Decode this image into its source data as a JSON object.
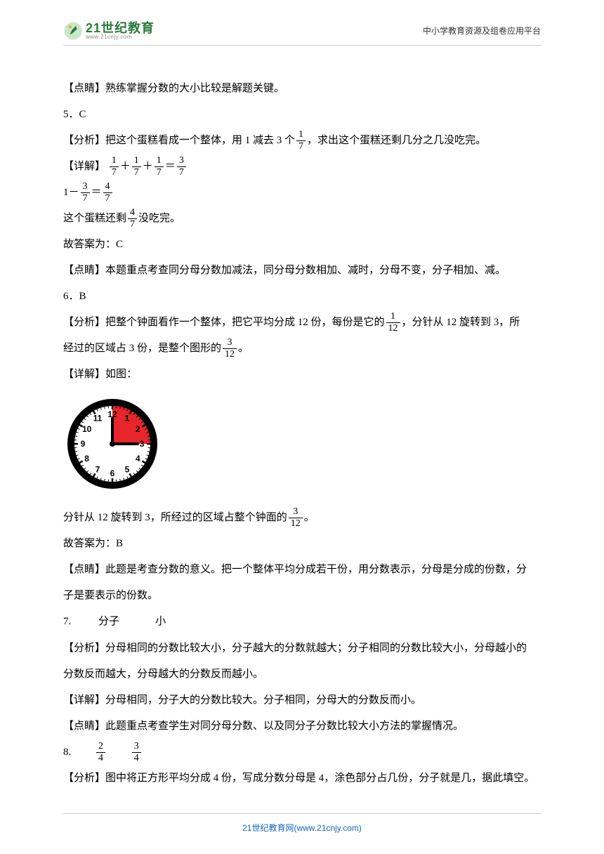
{
  "header": {
    "logo_main": "21世纪教育",
    "logo_sub": "www.21cnjy.com",
    "right_text": "中小学教育资源及组卷应用平台"
  },
  "lines": {
    "l1": "【点睛】熟练掌握分数的大小比较是解题关键。",
    "l2": "5．C",
    "l3a": "【分析】把这个蛋糕看成一个整体，用 1 减去 3 个",
    "l3b": "，求出这个蛋糕还剩几分之几没吃完。",
    "l4": "【详解】",
    "l5a": "1－",
    "l5b": "＝",
    "l6a": "这个蛋糕还剩",
    "l6b": "没吃完。",
    "l7": "故答案为：C",
    "l8": "【点睛】本题重点考查同分母分数加减法，同分母分数相加、减时，分母不变，分子相加、减。",
    "l9": "6．B",
    "l10a": "【分析】把整个钟面看作一个整体，把它平均分成 12 份，每份是它的",
    "l10b": "，分针从 12 旋转到 3，所",
    "l11a": "经过的区域占 3 份，是整个图形的",
    "l11b": "。",
    "l12": "【详解】如图：",
    "l13a": "分针从 12 旋转到 3，所经过的区域占整个钟面的",
    "l13b": "。",
    "l14": "故答案为：B",
    "l15": "【点睛】此题是考查分数的意义。把一个整体平均分成若干份，用分数表示，分母是分成的份数，分",
    "l16": "子是要表示的份数。",
    "l17a": "7.",
    "l17b": "分子",
    "l17c": "小",
    "l18": "【分析】分母相同的分数比较大小，分子越大的分数就越大；分子相同的分数比较大小，分母越小的",
    "l19": "分数反而越大，分母越大的分数反而越小。",
    "l20": "【详解】分母相同，分子大的分数比较大。分子相同，分母大的分数反而小。",
    "l21": "【点睛】此题重点考查学生对同分母分数、以及同分子分数比较大小方法的掌握情况。",
    "l22": "8.",
    "l23": "【分析】图中将正方形平均分成 4 份，写成分数分母是 4，涂色部分占几份，分子就是几，据此填空。"
  },
  "fractions": {
    "f1_7": {
      "n": "1",
      "d": "7"
    },
    "f3_7": {
      "n": "3",
      "d": "7"
    },
    "f4_7": {
      "n": "4",
      "d": "7"
    },
    "f1_12": {
      "n": "1",
      "d": "12"
    },
    "f3_12": {
      "n": "3",
      "d": "12"
    },
    "f2_4": {
      "n": "2",
      "d": "4"
    },
    "f3_4": {
      "n": "3",
      "d": "4"
    }
  },
  "clock": {
    "face_color": "#ffffff",
    "rim_color": "#000000",
    "sector_color": "#e8252a",
    "tick_color": "#000000",
    "number_color": "#000000",
    "hand_color": "#000000",
    "sector_start": 12,
    "sector_end": 3,
    "numbers": [
      "12",
      "1",
      "2",
      "3",
      "4",
      "5",
      "6",
      "7",
      "8",
      "9",
      "10",
      "11"
    ]
  },
  "footer": {
    "text": "21世纪教育网(www.21cnjy.com)"
  }
}
